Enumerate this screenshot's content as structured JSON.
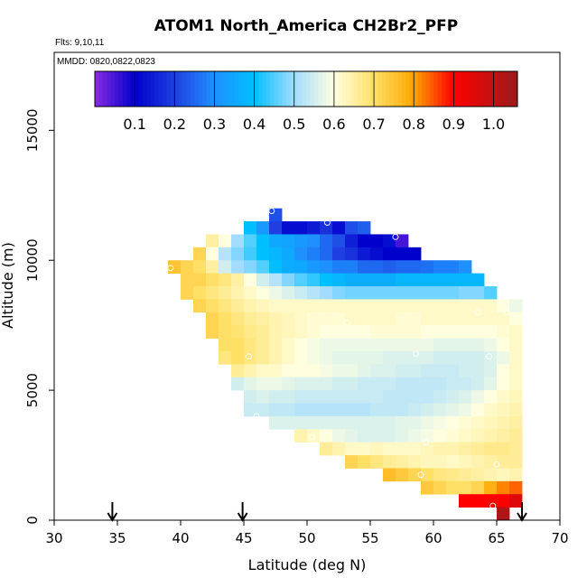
{
  "chart_data": {
    "type": "heatmap",
    "title": "ATOM1 North_America CH2Br2_PFP",
    "annotations": [
      "Flts: 9,10,11",
      "MMDD: 0820,0822,0823"
    ],
    "xlabel": "Latitude (deg N)",
    "ylabel": "Altitude (m)",
    "xlim": [
      30,
      70
    ],
    "ylim": [
      0,
      18000
    ],
    "x_ticks": [
      30,
      35,
      40,
      45,
      50,
      55,
      60,
      65,
      70
    ],
    "y_ticks": [
      0,
      5000,
      10000,
      15000
    ],
    "colorbar": {
      "min": 0,
      "max": 1.06,
      "ticks": [
        0.1,
        0.2,
        0.3,
        0.4,
        0.5,
        0.6,
        0.7,
        0.8,
        0.9,
        1.0
      ],
      "tick_labels": [
        "0.1",
        "0.2",
        "0.3",
        "0.4",
        "0.5",
        "0.6",
        "0.7",
        "0.8",
        "0.9",
        "1.0"
      ],
      "stops": [
        {
          "v": 0.0,
          "color": "#8a2be2"
        },
        {
          "v": 0.1,
          "color": "#0000cd"
        },
        {
          "v": 0.2,
          "color": "#1f3fe0"
        },
        {
          "v": 0.3,
          "color": "#1e90ff"
        },
        {
          "v": 0.4,
          "color": "#00bfff"
        },
        {
          "v": 0.5,
          "color": "#a3dcff"
        },
        {
          "v": 0.6,
          "color": "#ffffe0"
        },
        {
          "v": 0.7,
          "color": "#ffe066"
        },
        {
          "v": 0.8,
          "color": "#ffa500"
        },
        {
          "v": 0.9,
          "color": "#ff0000"
        },
        {
          "v": 1.06,
          "color": "#9b1c1c"
        }
      ]
    },
    "cell_width_deg": 1,
    "cell_height_m": 500,
    "rows": [
      {
        "alt": 11750,
        "lat_start": 47,
        "values": [
          0.22
        ]
      },
      {
        "alt": 11250,
        "lat_start": 45,
        "values": [
          0.4,
          0.32,
          0.2,
          0.12,
          0.12,
          0.14,
          0.18,
          0.12,
          0.22,
          0.24
        ]
      },
      {
        "alt": 10750,
        "lat_start": 42,
        "values": [
          0.65,
          0.6,
          0.5,
          0.45,
          0.4,
          0.35,
          0.34,
          0.32,
          0.3,
          0.25,
          0.22,
          0.15,
          0.1,
          0.1,
          0.12,
          0.05
        ]
      },
      {
        "alt": 10250,
        "lat_start": 41,
        "values": [
          0.72,
          0.6,
          0.52,
          0.48,
          0.44,
          0.4,
          0.38,
          0.35,
          0.3,
          0.28,
          0.25,
          0.2,
          0.18,
          0.14,
          0.12,
          0.1,
          0.1,
          0.1
        ]
      },
      {
        "alt": 9750,
        "lat_start": 39,
        "values": [
          0.75,
          0.72,
          0.7,
          0.65,
          0.55,
          0.5,
          0.48,
          0.45,
          0.4,
          0.36,
          0.35,
          0.32,
          0.3,
          0.28,
          0.28,
          0.25,
          0.25,
          0.24,
          0.25,
          0.25,
          0.26,
          0.28,
          0.28,
          0.3
        ]
      },
      {
        "alt": 9250,
        "lat_start": 40,
        "values": [
          0.72,
          0.72,
          0.7,
          0.68,
          0.65,
          0.6,
          0.55,
          0.52,
          0.48,
          0.45,
          0.43,
          0.4,
          0.38,
          0.36,
          0.36,
          0.36,
          0.36,
          0.38,
          0.38,
          0.38,
          0.38,
          0.38,
          0.38,
          0.38
        ]
      },
      {
        "alt": 8750,
        "lat_start": 40,
        "values": [
          0.72,
          0.7,
          0.68,
          0.66,
          0.64,
          0.62,
          0.6,
          0.58,
          0.56,
          0.54,
          0.52,
          0.5,
          0.48,
          0.47,
          0.47,
          0.47,
          0.47,
          0.47,
          0.47,
          0.47,
          0.47,
          0.47,
          0.48,
          0.48,
          0.45
        ]
      },
      {
        "alt": 8250,
        "lat_start": 41,
        "values": [
          0.72,
          0.7,
          0.68,
          0.66,
          0.64,
          0.63,
          0.62,
          0.62,
          0.62,
          0.62,
          0.62,
          0.62,
          0.62,
          0.62,
          0.62,
          0.62,
          0.62,
          0.62,
          0.62,
          0.62,
          0.62,
          0.62,
          0.62,
          0.62,
          0.6,
          0.58
        ]
      },
      {
        "alt": 7750,
        "lat_start": 42,
        "values": [
          0.72,
          0.7,
          0.68,
          0.66,
          0.65,
          0.64,
          0.63,
          0.62,
          0.61,
          0.61,
          0.61,
          0.62,
          0.62,
          0.62,
          0.62,
          0.61,
          0.61,
          0.62,
          0.62,
          0.62,
          0.62,
          0.62,
          0.62,
          0.62,
          0.6
        ]
      },
      {
        "alt": 7250,
        "lat_start": 42,
        "values": [
          0.72,
          0.7,
          0.69,
          0.67,
          0.66,
          0.64,
          0.63,
          0.62,
          0.61,
          0.6,
          0.6,
          0.6,
          0.6,
          0.61,
          0.61,
          0.61,
          0.61,
          0.6,
          0.6,
          0.6,
          0.6,
          0.6,
          0.6,
          0.61,
          0.62
        ]
      },
      {
        "alt": 6750,
        "lat_start": 43,
        "values": [
          0.7,
          0.7,
          0.68,
          0.66,
          0.64,
          0.62,
          0.6,
          0.59,
          0.58,
          0.58,
          0.58,
          0.58,
          0.58,
          0.58,
          0.58,
          0.58,
          0.58,
          0.57,
          0.57,
          0.57,
          0.57,
          0.58,
          0.6,
          0.62
        ]
      },
      {
        "alt": 6250,
        "lat_start": 43,
        "values": [
          0.68,
          0.7,
          0.68,
          0.66,
          0.64,
          0.62,
          0.6,
          0.59,
          0.58,
          0.57,
          0.57,
          0.57,
          0.57,
          0.56,
          0.56,
          0.56,
          0.56,
          0.55,
          0.55,
          0.55,
          0.55,
          0.56,
          0.58,
          0.62
        ]
      },
      {
        "alt": 5750,
        "lat_start": 44,
        "values": [
          0.66,
          0.64,
          0.62,
          0.62,
          0.6,
          0.6,
          0.6,
          0.59,
          0.58,
          0.58,
          0.57,
          0.56,
          0.56,
          0.55,
          0.55,
          0.54,
          0.54,
          0.54,
          0.55,
          0.55,
          0.56,
          0.6,
          0.62
        ]
      },
      {
        "alt": 5250,
        "lat_start": 44,
        "values": [
          0.55,
          0.57,
          0.58,
          0.58,
          0.57,
          0.56,
          0.56,
          0.56,
          0.55,
          0.55,
          0.54,
          0.54,
          0.54,
          0.53,
          0.53,
          0.53,
          0.53,
          0.54,
          0.54,
          0.55,
          0.57,
          0.6,
          0.62
        ]
      },
      {
        "alt": 4750,
        "lat_start": 45,
        "values": [
          0.55,
          0.56,
          0.55,
          0.55,
          0.54,
          0.54,
          0.54,
          0.54,
          0.54,
          0.54,
          0.54,
          0.53,
          0.53,
          0.53,
          0.53,
          0.54,
          0.55,
          0.56,
          0.58,
          0.6,
          0.62,
          0.63
        ]
      },
      {
        "alt": 4250,
        "lat_start": 45,
        "values": [
          0.54,
          0.54,
          0.53,
          0.53,
          0.52,
          0.52,
          0.52,
          0.52,
          0.52,
          0.52,
          0.53,
          0.53,
          0.53,
          0.54,
          0.55,
          0.56,
          0.57,
          0.58,
          0.6,
          0.62,
          0.63,
          0.64
        ]
      },
      {
        "alt": 3750,
        "lat_start": 47,
        "values": [
          0.56,
          0.56,
          0.56,
          0.56,
          0.56,
          0.56,
          0.56,
          0.56,
          0.56,
          0.56,
          0.57,
          0.57,
          0.58,
          0.59,
          0.6,
          0.61,
          0.62,
          0.63,
          0.64,
          0.65
        ]
      },
      {
        "alt": 3250,
        "lat_start": 49,
        "values": [
          0.64,
          0.62,
          0.6,
          0.58,
          0.57,
          0.56,
          0.56,
          0.56,
          0.57,
          0.58,
          0.59,
          0.6,
          0.61,
          0.62,
          0.63,
          0.64,
          0.65,
          0.66
        ]
      },
      {
        "alt": 2750,
        "lat_start": 51,
        "values": [
          0.66,
          0.64,
          0.62,
          0.62,
          0.63,
          0.62,
          0.62,
          0.62,
          0.63,
          0.64,
          0.64,
          0.65,
          0.66,
          0.67,
          0.67,
          0.66
        ]
      },
      {
        "alt": 2250,
        "lat_start": 53,
        "values": [
          0.72,
          0.7,
          0.68,
          0.66,
          0.65,
          0.64,
          0.63,
          0.63,
          0.62,
          0.63,
          0.64,
          0.65,
          0.66,
          0.66
        ]
      },
      {
        "alt": 1750,
        "lat_start": 56,
        "values": [
          0.76,
          0.74,
          0.72,
          0.7,
          0.68,
          0.67,
          0.66,
          0.65,
          0.64,
          0.63,
          0.64
        ]
      },
      {
        "alt": 1250,
        "lat_start": 59,
        "values": [
          0.74,
          0.72,
          0.7,
          0.7,
          0.72,
          0.78,
          0.82,
          0.84
        ]
      },
      {
        "alt": 750,
        "lat_start": 62,
        "values": [
          0.9,
          0.9,
          0.9,
          0.9,
          0.95
        ]
      },
      {
        "alt": 250,
        "lat_start": 65,
        "values": [
          1.03
        ]
      }
    ],
    "sample_points": [
      {
        "lat": 47.2,
        "alt": 11900
      },
      {
        "lat": 51.6,
        "alt": 11450
      },
      {
        "lat": 57.0,
        "alt": 10900
      },
      {
        "lat": 39.2,
        "alt": 9700
      },
      {
        "lat": 53.2,
        "alt": 7600
      },
      {
        "lat": 63.5,
        "alt": 8000
      },
      {
        "lat": 65.8,
        "alt": 8000
      },
      {
        "lat": 45.4,
        "alt": 6300
      },
      {
        "lat": 58.6,
        "alt": 6400
      },
      {
        "lat": 64.4,
        "alt": 6300
      },
      {
        "lat": 46.0,
        "alt": 4000
      },
      {
        "lat": 50.4,
        "alt": 3200
      },
      {
        "lat": 59.4,
        "alt": 3000
      },
      {
        "lat": 59.0,
        "alt": 1750
      },
      {
        "lat": 65.0,
        "alt": 2150
      },
      {
        "lat": 64.7,
        "alt": 550
      }
    ],
    "arrows_lat": [
      34.6,
      44.9,
      67.0
    ]
  }
}
